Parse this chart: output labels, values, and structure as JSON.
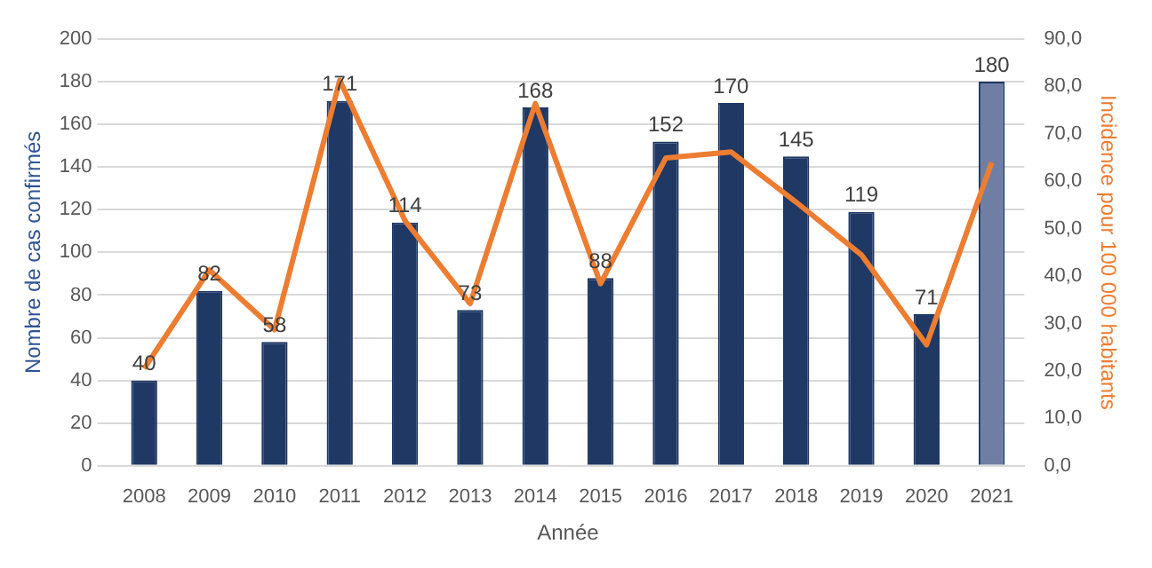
{
  "chart_data": {
    "type": "bar",
    "xlabel": "Année",
    "ylabel": "Nombre de cas confirmés",
    "y2label": "Incidence pour 100 000 habitants",
    "categories": [
      "2008",
      "2009",
      "2010",
      "2011",
      "2012",
      "2013",
      "2014",
      "2015",
      "2016",
      "2017",
      "2018",
      "2019",
      "2020",
      "2021"
    ],
    "series": [
      {
        "type": "bar",
        "color": "#1f3864",
        "colors": [
          "#1f3864",
          "#1f3864",
          "#1f3864",
          "#1f3864",
          "#1f3864",
          "#1f3864",
          "#1f3864",
          "#1f3864",
          "#1f3864",
          "#1f3864",
          "#1f3864",
          "#1f3864",
          "#1f3864",
          "#6f7fa3"
        ],
        "values": [
          40,
          82,
          58,
          171,
          114,
          73,
          168,
          88,
          152,
          170,
          145,
          119,
          71,
          180
        ],
        "value_labels": [
          "40",
          "82",
          "58",
          "171",
          "114",
          "73",
          "168",
          "88",
          "152",
          "170",
          "145",
          "119",
          "71",
          "180"
        ]
      },
      {
        "type": "line",
        "axis": "y2",
        "color": "#ed7d31",
        "values": [
          20.5,
          41.3,
          28.7,
          81.3,
          51.7,
          34.2,
          76.4,
          38.4,
          64.9,
          66.2,
          55.6,
          44.5,
          25.5,
          64.0
        ]
      }
    ],
    "ylim": [
      0,
      200
    ],
    "yticks": [
      0,
      20,
      40,
      60,
      80,
      100,
      120,
      140,
      160,
      180,
      200
    ],
    "y2lim": [
      0,
      90
    ],
    "y2ticks": [
      {
        "value": 0,
        "label": "0,0"
      },
      {
        "value": 10,
        "label": "10,0"
      },
      {
        "value": 20,
        "label": "20,0"
      },
      {
        "value": 30,
        "label": "30,0"
      },
      {
        "value": 40,
        "label": "40,0"
      },
      {
        "value": 50,
        "label": "50,0"
      },
      {
        "value": 60,
        "label": "60,0"
      },
      {
        "value": 70,
        "label": "70,0"
      },
      {
        "value": 80,
        "label": "80,0"
      },
      {
        "value": 90,
        "label": "90,0"
      }
    ],
    "grid": "y",
    "legend": false,
    "marker": "none"
  }
}
